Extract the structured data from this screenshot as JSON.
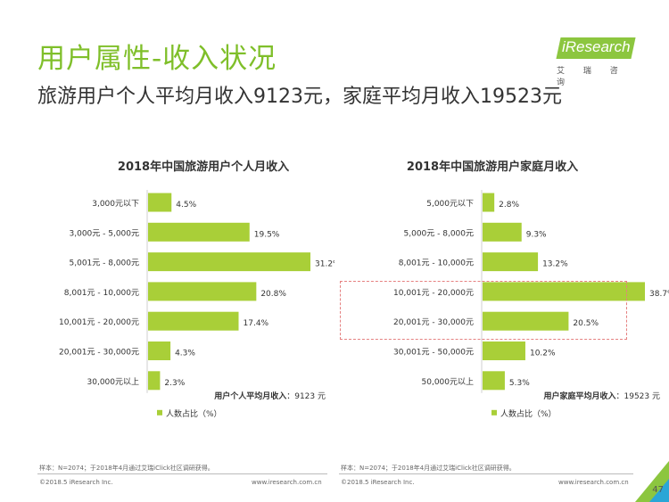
{
  "header": {
    "title": "用户属性-收入状况",
    "subtitle": "旅游用户个人平均月收入9123元，家庭平均月收入19523元"
  },
  "logo": {
    "brand": "iResearch",
    "sub": "艾 瑞 咨 询"
  },
  "colors": {
    "accent": "#8cc63f",
    "bar": "#a9cf38",
    "highlight": "#e58080"
  },
  "chart_data": [
    {
      "type": "bar",
      "orientation": "horizontal",
      "title": "2018年中国旅游用户个人月收入",
      "categories": [
        "3,000元以下",
        "3,000元 - 5,000元",
        "5,001元 - 8,000元",
        "8,001元 - 10,000元",
        "10,001元 - 20,000元",
        "20,001元 - 30,000元",
        "30,000元以上"
      ],
      "values": [
        4.5,
        19.5,
        31.2,
        20.8,
        17.4,
        4.3,
        2.3
      ],
      "value_suffix": "%",
      "xlim": [
        0,
        32
      ],
      "annotation_label": "用户个人平均月收入",
      "annotation_value": "：9123 元",
      "legend": "人数占比（%）",
      "grid": false
    },
    {
      "type": "bar",
      "orientation": "horizontal",
      "title": "2018年中国旅游用户家庭月收入",
      "categories": [
        "5,000元以下",
        "5,000元 - 8,000元",
        "8,001元 - 10,000元",
        "10,001元 - 20,000元",
        "20,001元 - 30,000元",
        "30,001元 - 50,000元",
        "50,000元以上"
      ],
      "values": [
        2.8,
        9.3,
        13.2,
        38.7,
        20.5,
        10.2,
        5.3
      ],
      "value_suffix": "%",
      "xlim": [
        0,
        40
      ],
      "annotation_label": "用户家庭平均月收入",
      "annotation_value": "：19523 元",
      "legend": "人数占比（%）",
      "grid": false,
      "highlighted_categories": [
        "10,001元 - 20,000元",
        "20,001元 - 30,000元"
      ]
    }
  ],
  "notes": {
    "left": "样本：N=2074；于2018年4月通过艾瑞iClick社区调研获得。",
    "right": "样本：N=2074；于2018年4月通过艾瑞iClick社区调研获得。"
  },
  "footer": {
    "copyright": "©2018.5 iResearch Inc.",
    "url": "www.iresearch.com.cn",
    "page": "47"
  }
}
